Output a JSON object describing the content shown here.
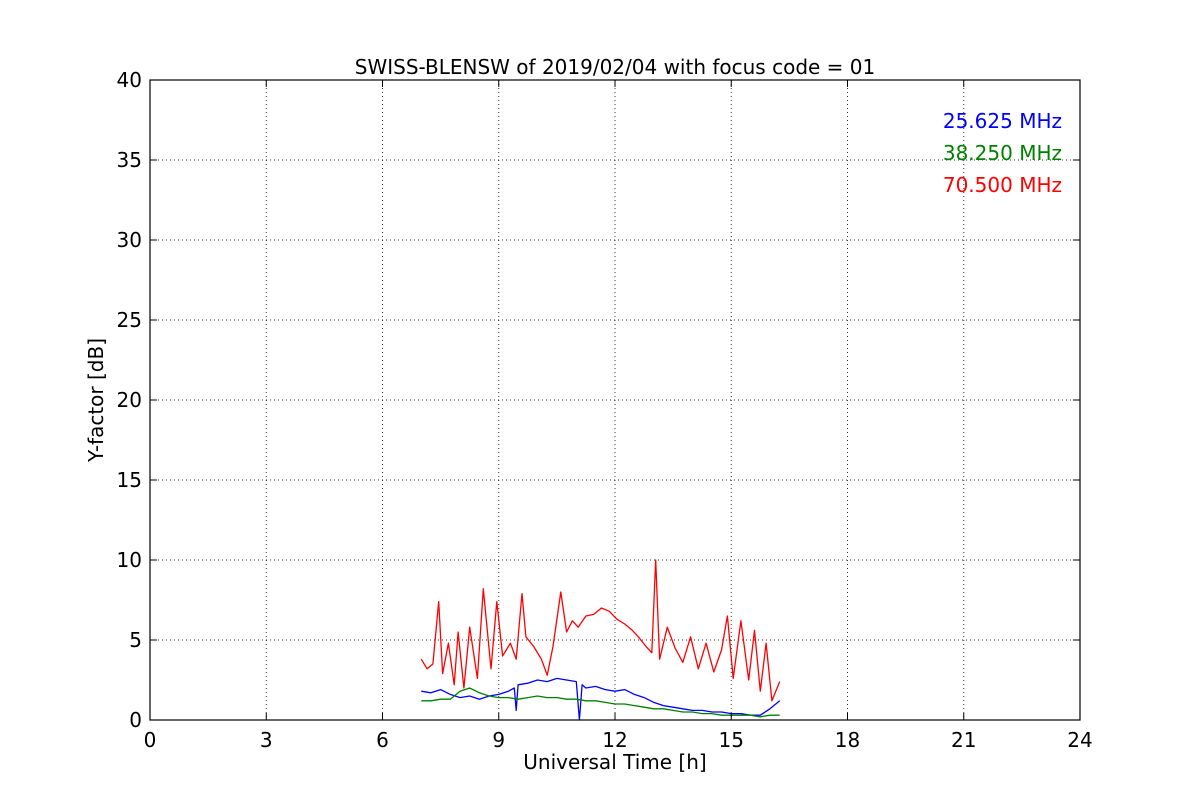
{
  "chart_data": {
    "type": "line",
    "title": "SWISS-BLENSW of 2019/02/04 with focus code = 01",
    "xlabel": "Universal Time [h]",
    "ylabel": "Y-factor [dB]",
    "xlim": [
      0,
      24
    ],
    "ylim": [
      0,
      40
    ],
    "xticks": [
      0,
      3,
      6,
      9,
      12,
      15,
      18,
      21,
      24
    ],
    "yticks": [
      0,
      5,
      10,
      15,
      20,
      25,
      30,
      35,
      40
    ],
    "xtick_labels": [
      "0",
      "3",
      "6",
      "9",
      "12",
      "15",
      "18",
      "21",
      "24"
    ],
    "ytick_labels": [
      "0",
      "5",
      "10",
      "15",
      "20",
      "25",
      "30",
      "35",
      "40"
    ],
    "grid": true,
    "legend_position": "top-right",
    "series": [
      {
        "name": "25.625 MHz",
        "color": "#0000ff",
        "x": [
          7.0,
          7.25,
          7.5,
          7.75,
          8.0,
          8.25,
          8.5,
          8.75,
          9.0,
          9.25,
          9.4,
          9.45,
          9.5,
          9.75,
          10.0,
          10.25,
          10.5,
          10.75,
          11.0,
          11.08,
          11.15,
          11.25,
          11.5,
          11.75,
          12.0,
          12.25,
          12.5,
          12.75,
          13.0,
          13.25,
          13.5,
          13.75,
          14.0,
          14.25,
          14.5,
          14.75,
          15.0,
          15.25,
          15.5,
          15.75,
          16.0,
          16.25
        ],
        "y": [
          1.8,
          1.7,
          1.9,
          1.6,
          1.4,
          1.5,
          1.3,
          1.5,
          1.6,
          1.8,
          2.0,
          0.6,
          2.2,
          2.3,
          2.5,
          2.4,
          2.6,
          2.5,
          2.4,
          0.0,
          2.2,
          2.0,
          2.1,
          1.9,
          1.8,
          1.9,
          1.6,
          1.4,
          1.1,
          0.9,
          0.8,
          0.7,
          0.6,
          0.6,
          0.5,
          0.5,
          0.4,
          0.4,
          0.3,
          0.3,
          0.7,
          1.2
        ]
      },
      {
        "name": "38.250 MHz",
        "color": "#008000",
        "x": [
          7.0,
          7.25,
          7.5,
          7.75,
          8.0,
          8.25,
          8.5,
          8.75,
          9.0,
          9.25,
          9.5,
          9.75,
          10.0,
          10.25,
          10.5,
          10.75,
          11.0,
          11.25,
          11.5,
          11.75,
          12.0,
          12.25,
          12.5,
          12.75,
          13.0,
          13.25,
          13.5,
          13.75,
          14.0,
          14.25,
          14.5,
          14.75,
          15.0,
          15.25,
          15.5,
          15.75,
          16.0,
          16.25
        ],
        "y": [
          1.2,
          1.2,
          1.3,
          1.3,
          1.8,
          2.0,
          1.7,
          1.5,
          1.4,
          1.4,
          1.3,
          1.4,
          1.5,
          1.4,
          1.4,
          1.3,
          1.3,
          1.2,
          1.2,
          1.1,
          1.0,
          1.0,
          0.9,
          0.8,
          0.7,
          0.7,
          0.6,
          0.5,
          0.5,
          0.4,
          0.4,
          0.3,
          0.3,
          0.3,
          0.3,
          0.2,
          0.3,
          0.3
        ]
      },
      {
        "name": "70.500 MHz",
        "color": "#ff0000",
        "x": [
          7.0,
          7.15,
          7.3,
          7.45,
          7.55,
          7.7,
          7.85,
          7.95,
          8.1,
          8.25,
          8.45,
          8.6,
          8.8,
          8.95,
          9.1,
          9.3,
          9.45,
          9.6,
          9.7,
          9.9,
          10.1,
          10.25,
          10.4,
          10.6,
          10.75,
          10.9,
          11.05,
          11.25,
          11.45,
          11.65,
          11.85,
          12.05,
          12.25,
          12.45,
          12.6,
          12.8,
          12.95,
          13.05,
          13.15,
          13.35,
          13.55,
          13.75,
          13.95,
          14.15,
          14.35,
          14.55,
          14.75,
          14.9,
          15.05,
          15.25,
          15.45,
          15.6,
          15.75,
          15.9,
          16.05,
          16.25
        ],
        "y": [
          3.8,
          3.2,
          3.5,
          7.4,
          2.9,
          4.8,
          2.2,
          5.5,
          2.0,
          5.8,
          2.6,
          8.2,
          3.2,
          7.4,
          4.0,
          4.8,
          3.8,
          7.9,
          5.2,
          4.6,
          3.8,
          2.8,
          4.6,
          8.0,
          5.5,
          6.2,
          5.8,
          6.5,
          6.6,
          7.0,
          6.8,
          6.3,
          6.0,
          5.6,
          5.2,
          4.6,
          4.2,
          10.0,
          3.8,
          5.8,
          4.5,
          3.6,
          5.2,
          3.2,
          4.8,
          3.0,
          4.4,
          6.5,
          2.6,
          6.2,
          2.5,
          5.6,
          1.8,
          4.8,
          1.2,
          2.4
        ]
      }
    ]
  }
}
